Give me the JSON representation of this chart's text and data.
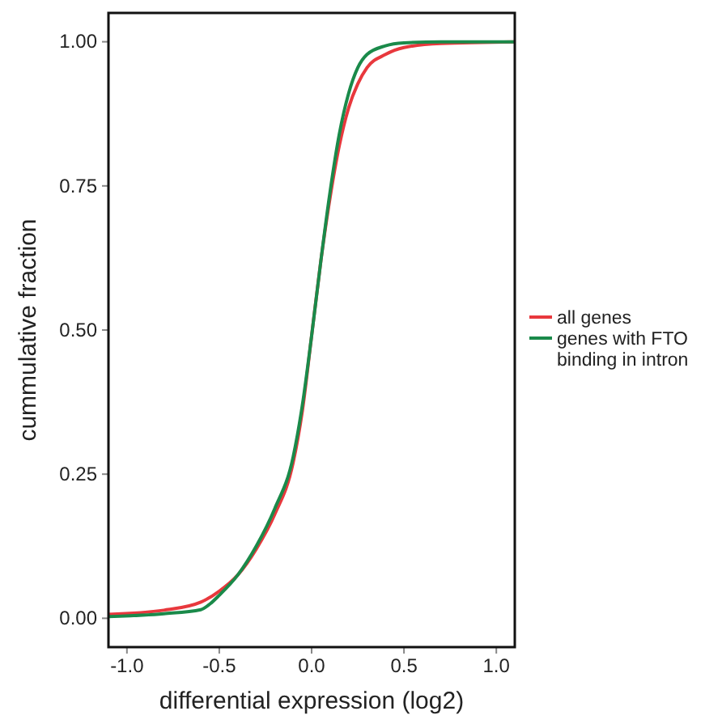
{
  "chart_data": {
    "type": "line",
    "xlabel": "differential expression (log2)",
    "ylabel": "cummulative fraction",
    "xlim": [
      -1.1,
      1.1
    ],
    "xticks": [
      {
        "value": -1,
        "label": "-1.0"
      },
      {
        "value": -0.5,
        "label": "-0.5"
      },
      {
        "value": 0,
        "label": "0.0"
      },
      {
        "value": 0.5,
        "label": "0.5"
      },
      {
        "value": 1,
        "label": "1.0"
      }
    ],
    "ylim": [
      -0.05,
      1.05
    ],
    "yticks": [
      {
        "value": 0,
        "label": "0.00"
      },
      {
        "value": 0.25,
        "label": "0.25"
      },
      {
        "value": 0.5,
        "label": "0.50"
      },
      {
        "value": 0.75,
        "label": "0.75"
      },
      {
        "value": 1,
        "label": "1.00"
      }
    ],
    "grid": false,
    "legend": "right",
    "line_style": "solid",
    "series": [
      {
        "name": "all genes",
        "color": "#e8383d",
        "x": [
          -1.1,
          -0.8,
          -0.6,
          -0.5,
          -0.4,
          -0.3,
          -0.2,
          -0.1,
          -0.05,
          0,
          0.05,
          0.1,
          0.15,
          0.2,
          0.25,
          0.3,
          0.4,
          0.5,
          0.7,
          1.1
        ],
        "values": [
          0.007,
          0.014,
          0.028,
          0.047,
          0.075,
          0.12,
          0.18,
          0.27,
          0.36,
          0.49,
          0.62,
          0.73,
          0.82,
          0.885,
          0.927,
          0.955,
          0.978,
          0.99,
          0.997,
          1.0
        ]
      },
      {
        "name": "genes with FTO binding in intron",
        "color": "#1a8a4a",
        "x": [
          -1.1,
          -0.8,
          -0.6,
          -0.55,
          -0.5,
          -0.4,
          -0.3,
          -0.2,
          -0.1,
          -0.05,
          0,
          0.05,
          0.1,
          0.15,
          0.2,
          0.25,
          0.3,
          0.4,
          0.5,
          0.7,
          1.1
        ],
        "values": [
          0.003,
          0.008,
          0.015,
          0.025,
          0.04,
          0.075,
          0.125,
          0.19,
          0.28,
          0.37,
          0.49,
          0.62,
          0.74,
          0.84,
          0.91,
          0.955,
          0.978,
          0.993,
          0.998,
          1.0,
          1.0
        ]
      }
    ]
  }
}
